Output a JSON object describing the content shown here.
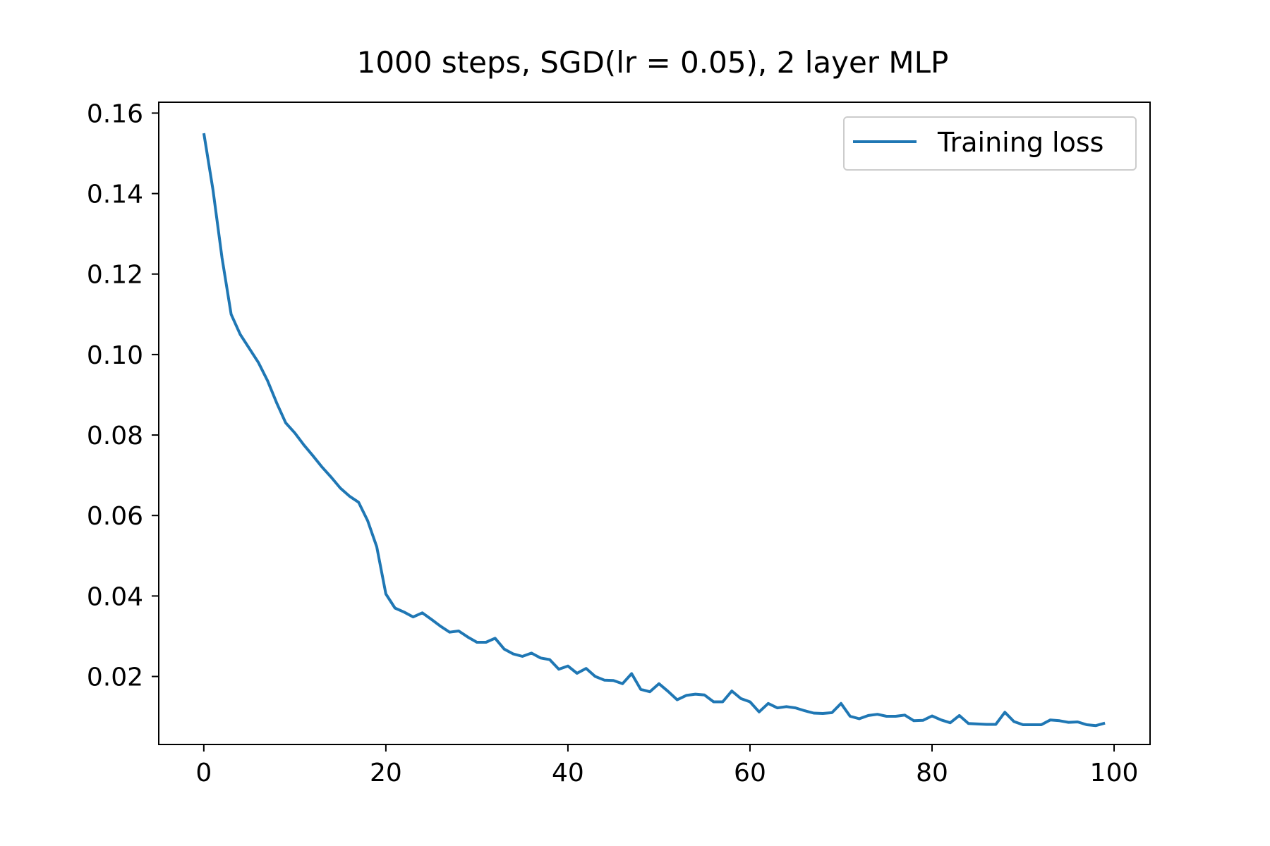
{
  "chart_data": {
    "type": "line",
    "title": "1000 steps, SGD(lr = 0.05), 2 layer MLP",
    "xlabel": "",
    "ylabel": "",
    "xlim": [
      -4.95,
      103.95
    ],
    "ylim": [
      0.0031,
      0.1627
    ],
    "xticks": [
      0,
      20,
      40,
      60,
      80,
      100
    ],
    "xtick_labels": [
      "0",
      "20",
      "40",
      "60",
      "80",
      "100"
    ],
    "yticks": [
      0.02,
      0.04,
      0.06,
      0.08,
      0.1,
      0.12,
      0.14,
      0.16
    ],
    "ytick_labels": [
      "0.02",
      "0.04",
      "0.06",
      "0.08",
      "0.10",
      "0.12",
      "0.14",
      "0.16"
    ],
    "grid": false,
    "legend_position": "upper right",
    "series": [
      {
        "name": "Training loss",
        "color": "#1f77b4",
        "x": [
          0,
          1,
          2,
          3,
          4,
          5,
          6,
          7,
          8,
          9,
          10,
          11,
          12,
          13,
          14,
          15,
          16,
          17,
          18,
          19,
          20,
          21,
          22,
          23,
          24,
          25,
          26,
          27,
          28,
          29,
          30,
          31,
          32,
          33,
          34,
          35,
          36,
          37,
          38,
          39,
          40,
          41,
          42,
          43,
          44,
          45,
          46,
          47,
          48,
          49,
          50,
          51,
          52,
          53,
          54,
          55,
          56,
          57,
          58,
          59,
          60,
          61,
          62,
          63,
          64,
          65,
          66,
          67,
          68,
          69,
          70,
          71,
          72,
          73,
          74,
          75,
          76,
          77,
          78,
          79,
          80,
          81,
          82,
          83,
          84,
          85,
          86,
          87,
          88,
          89,
          90,
          91,
          92,
          93,
          94,
          95,
          96,
          97,
          98,
          99
        ],
        "y": [
          0.155,
          0.141,
          0.124,
          0.11,
          0.105,
          0.1015,
          0.098,
          0.0935,
          0.088,
          0.083,
          0.0805,
          0.0775,
          0.0748,
          0.072,
          0.0695,
          0.0668,
          0.0648,
          0.0633,
          0.0587,
          0.0522,
          0.0405,
          0.037,
          0.036,
          0.0348,
          0.0358,
          0.0342,
          0.0325,
          0.031,
          0.0313,
          0.0298,
          0.0285,
          0.0285,
          0.0295,
          0.0268,
          0.0256,
          0.025,
          0.0258,
          0.0246,
          0.0242,
          0.0218,
          0.0226,
          0.0208,
          0.022,
          0.02,
          0.0191,
          0.019,
          0.0182,
          0.0207,
          0.0168,
          0.0162,
          0.0182,
          0.0163,
          0.0142,
          0.0153,
          0.0156,
          0.0154,
          0.0137,
          0.0137,
          0.0164,
          0.0145,
          0.0137,
          0.0112,
          0.0133,
          0.0122,
          0.0125,
          0.0122,
          0.0115,
          0.0109,
          0.0108,
          0.011,
          0.0133,
          0.0101,
          0.0095,
          0.0103,
          0.0106,
          0.0101,
          0.0101,
          0.0104,
          0.009,
          0.0091,
          0.0102,
          0.0092,
          0.0085,
          0.0103,
          0.0083,
          0.0082,
          0.0081,
          0.0081,
          0.0111,
          0.0088,
          0.008,
          0.008,
          0.008,
          0.0092,
          0.009,
          0.0086,
          0.0087,
          0.008,
          0.0078,
          0.0084
        ]
      }
    ]
  }
}
